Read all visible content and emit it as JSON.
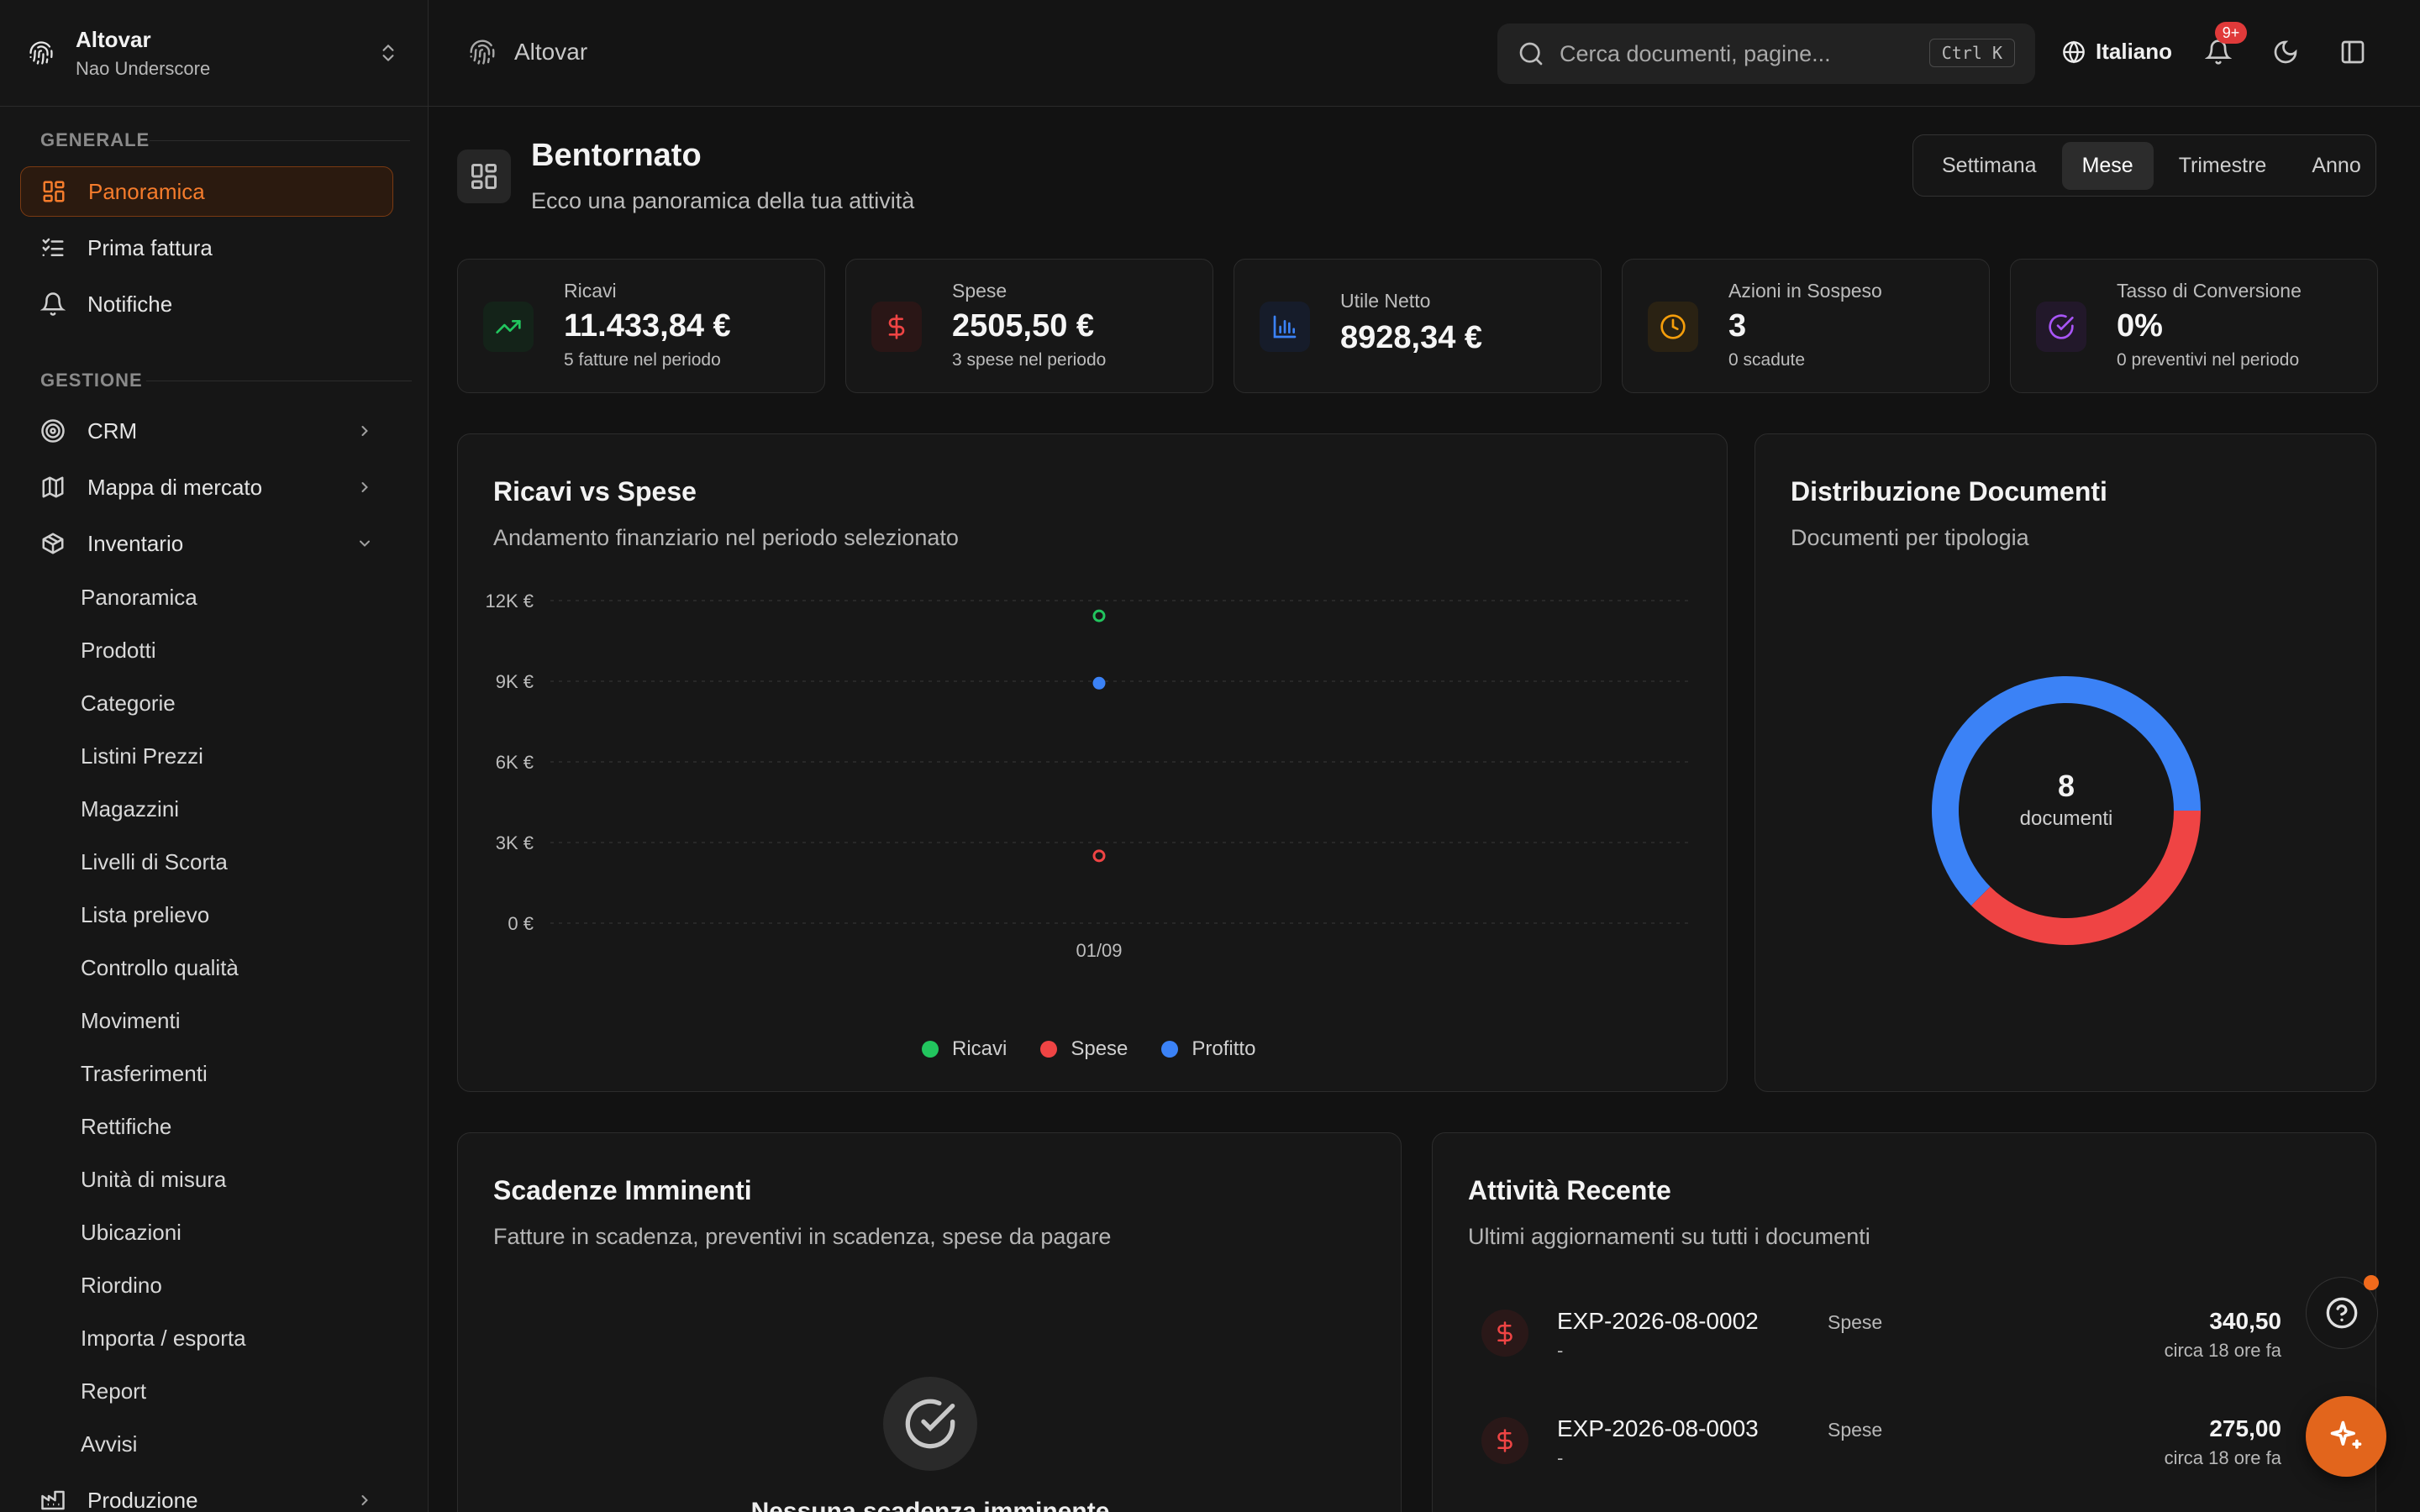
{
  "sidebar": {
    "org_name": "Altovar",
    "org_user": "Nao Underscore",
    "section_general": "GENERALE",
    "section_manage": "GESTIONE",
    "general_items": [
      {
        "label": "Panoramica",
        "icon": "dashboard-icon",
        "active": true
      },
      {
        "label": "Prima fattura",
        "icon": "checklist-icon"
      },
      {
        "label": "Notifiche",
        "icon": "bell-icon"
      }
    ],
    "manage_items": [
      {
        "label": "CRM",
        "icon": "target-icon"
      },
      {
        "label": "Mappa di mercato",
        "icon": "map-icon"
      },
      {
        "label": "Inventario",
        "icon": "package-icon",
        "expanded": true
      }
    ],
    "inventory_sub": [
      "Panoramica",
      "Prodotti",
      "Categorie",
      "Listini Prezzi",
      "Magazzini",
      "Livelli di Scorta",
      "Lista prelievo",
      "Controllo qualità",
      "Movimenti",
      "Trasferimenti",
      "Rettifiche",
      "Unità di misura",
      "Ubicazioni",
      "Riordino",
      "Importa / esporta",
      "Report",
      "Avvisi"
    ],
    "production_label": "Produzione"
  },
  "topbar": {
    "breadcrumb": "Altovar",
    "search_placeholder": "Cerca documenti, pagine...",
    "search_shortcut": "Ctrl K",
    "language": "Italiano",
    "notif_badge": "9+"
  },
  "header": {
    "title": "Bentornato",
    "subtitle": "Ecco una panoramica della tua attività",
    "periods": [
      "Settimana",
      "Mese",
      "Trimestre",
      "Anno"
    ],
    "active_period": "Mese"
  },
  "kpis": [
    {
      "label": "Ricavi",
      "value": "11.433,84 €",
      "sub": "5 fatture nel periodo",
      "icon": "trending-up-icon",
      "color": "#22c55e"
    },
    {
      "label": "Spese",
      "value": "2505,50 €",
      "sub": "3 spese nel periodo",
      "icon": "dollar-icon",
      "color": "#ef4444"
    },
    {
      "label": "Utile Netto",
      "value": "8928,34 €",
      "sub": "",
      "icon": "bar-chart-icon",
      "color": "#3b82f6"
    },
    {
      "label": "Azioni in Sospeso",
      "value": "3",
      "sub": "0 scadute",
      "icon": "clock-icon",
      "color": "#f59e0b"
    },
    {
      "label": "Tasso di Conversione",
      "value": "0%",
      "sub": "0 preventivi nel periodo",
      "icon": "check-circle-icon",
      "color": "#a855f7"
    }
  ],
  "revenue_card": {
    "title": "Ricavi vs Spese",
    "subtitle": "Andamento finanziario nel periodo selezionato"
  },
  "docs_card": {
    "title": "Distribuzione Documenti",
    "subtitle": "Documenti per tipologia",
    "total": "8",
    "total_label": "documenti"
  },
  "chart_data": [
    {
      "type": "scatter",
      "title": "Ricavi vs Spese",
      "x": [
        "01/09"
      ],
      "y_ticks": [
        "0 €",
        "3K €",
        "6K €",
        "9K €",
        "12K €"
      ],
      "ylim": [
        0,
        12000
      ],
      "series": [
        {
          "name": "Ricavi",
          "color": "#22c55e",
          "values": [
            11433.84
          ]
        },
        {
          "name": "Spese",
          "color": "#ef4444",
          "values": [
            2505.5
          ]
        },
        {
          "name": "Profitto",
          "color": "#3b82f6",
          "values": [
            8928.34
          ]
        }
      ],
      "legend": "bottom",
      "grid": true
    },
    {
      "type": "pie",
      "title": "Distribuzione Documenti",
      "slices": [
        {
          "color": "#ef4444",
          "value": 3
        },
        {
          "color": "#3b82f6",
          "value": 5
        }
      ]
    }
  ],
  "deadlines_card": {
    "title": "Scadenze Imminenti",
    "subtitle": "Fatture in scadenza, preventivi in scadenza, spese da pagare",
    "empty_text": "Nessuna scadenza imminente"
  },
  "activity_card": {
    "title": "Attività Recente",
    "subtitle": "Ultimi aggiornamenti su tutti i documenti",
    "items": [
      {
        "id": "EXP-2026-08-0002",
        "type": "Spese",
        "desc": "-",
        "amount": "340,50",
        "time": "circa 18 ore fa"
      },
      {
        "id": "EXP-2026-08-0003",
        "type": "Spese",
        "desc": "-",
        "amount": "275,00",
        "time": "circa 18 ore fa"
      }
    ]
  }
}
